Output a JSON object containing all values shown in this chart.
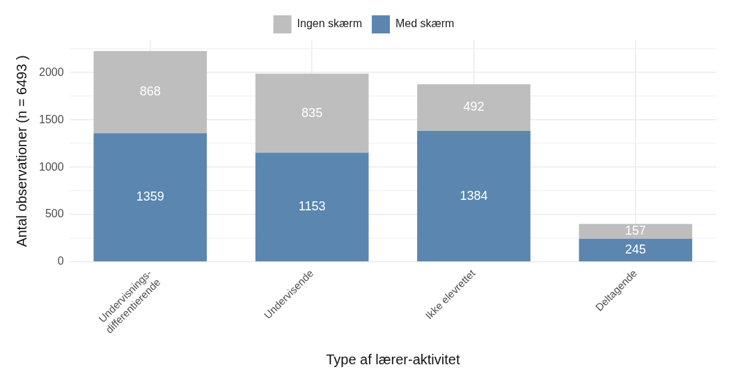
{
  "chart_data": {
    "type": "bar",
    "stacked": true,
    "xlabel": "Type af lærer-aktivitet",
    "ylabel": "Antal observationer (n = 6493 )",
    "categories": [
      "Undervisnings-\ndifferentierende",
      "Undervisende",
      "Ikke elevrettet",
      "Deltagende"
    ],
    "series": [
      {
        "name": "Med skærm",
        "color": "#5a86b0",
        "values": [
          1359,
          1153,
          1384,
          245
        ]
      },
      {
        "name": "Ingen skærm",
        "color": "#bebebe",
        "values": [
          868,
          835,
          492,
          157
        ]
      }
    ],
    "ylim": [
      0,
      2340
    ],
    "yticks": [
      0,
      {
        "value": 250,
        "label": null
      },
      500,
      {
        "value": 750,
        "label": null
      },
      1000,
      {
        "value": 1250,
        "label": null
      },
      1500,
      {
        "value": 1750,
        "label": null
      },
      2000,
      {
        "value": 2250,
        "label": null
      }
    ],
    "grid": true,
    "legend": "top",
    "data_labels": true
  }
}
